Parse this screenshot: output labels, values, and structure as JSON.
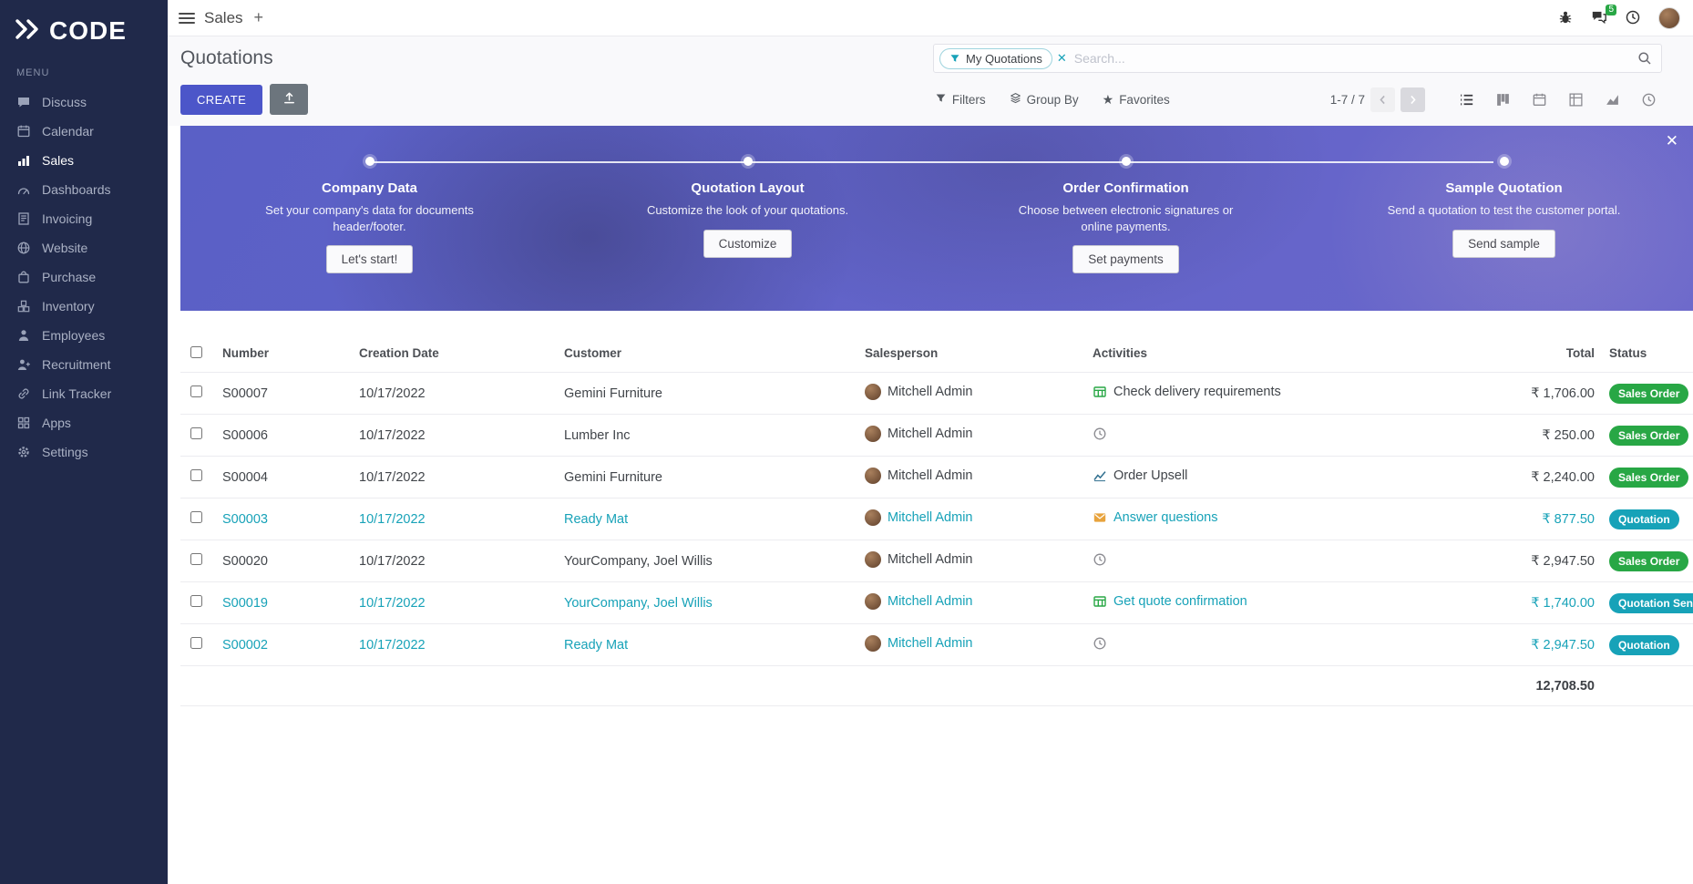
{
  "brand": {
    "name": "CODE"
  },
  "topbar": {
    "app_name": "Sales",
    "messages_badge": "5"
  },
  "sidebar": {
    "menu_label": "MENU",
    "items": [
      {
        "id": "discuss",
        "label": "Discuss",
        "active": false
      },
      {
        "id": "calendar",
        "label": "Calendar",
        "active": false
      },
      {
        "id": "sales",
        "label": "Sales",
        "active": true
      },
      {
        "id": "dashboards",
        "label": "Dashboards",
        "active": false
      },
      {
        "id": "invoicing",
        "label": "Invoicing",
        "active": false
      },
      {
        "id": "website",
        "label": "Website",
        "active": false
      },
      {
        "id": "purchase",
        "label": "Purchase",
        "active": false
      },
      {
        "id": "inventory",
        "label": "Inventory",
        "active": false
      },
      {
        "id": "employees",
        "label": "Employees",
        "active": false
      },
      {
        "id": "recruitment",
        "label": "Recruitment",
        "active": false
      },
      {
        "id": "link-tracker",
        "label": "Link Tracker",
        "active": false
      },
      {
        "id": "apps",
        "label": "Apps",
        "active": false
      },
      {
        "id": "settings",
        "label": "Settings",
        "active": false
      }
    ]
  },
  "control_panel": {
    "title": "Quotations",
    "search": {
      "filter_chip": "My Quotations",
      "placeholder": "Search..."
    },
    "create_label": "CREATE",
    "filters_label": "Filters",
    "group_by_label": "Group By",
    "favorites_label": "Favorites",
    "pager": {
      "text": "1-7 / 7"
    }
  },
  "banner": {
    "steps": [
      {
        "title": "Company Data",
        "desc": "Set your company's data for documents header/footer.",
        "button": "Let's start!"
      },
      {
        "title": "Quotation Layout",
        "desc": "Customize the look of your quotations.",
        "button": "Customize"
      },
      {
        "title": "Order Confirmation",
        "desc": "Choose between electronic signatures or online payments.",
        "button": "Set payments"
      },
      {
        "title": "Sample Quotation",
        "desc": "Send a quotation to test the customer portal.",
        "button": "Send sample"
      }
    ]
  },
  "table": {
    "columns": [
      "Number",
      "Creation Date",
      "Customer",
      "Salesperson",
      "Activities",
      "Total",
      "Status"
    ],
    "accent_color": "#17a2b8",
    "rows": [
      {
        "number": "S00007",
        "creation_date": "10/17/2022",
        "customer": "Gemini Furniture",
        "salesperson": "Mitchell Admin",
        "activity": {
          "icon": "grid",
          "icon_color": "#28a745",
          "label": "Check delivery requirements"
        },
        "total": "₹ 1,706.00",
        "status": "Sales Order",
        "status_variant": "success",
        "highlighted": false
      },
      {
        "number": "S00006",
        "creation_date": "10/17/2022",
        "customer": "Lumber Inc",
        "salesperson": "Mitchell Admin",
        "activity": {
          "icon": "clock",
          "icon_color": "#8a8a90",
          "label": ""
        },
        "total": "₹ 250.00",
        "status": "Sales Order",
        "status_variant": "success",
        "highlighted": false
      },
      {
        "number": "S00004",
        "creation_date": "10/17/2022",
        "customer": "Gemini Furniture",
        "salesperson": "Mitchell Admin",
        "activity": {
          "icon": "chart",
          "icon_color": "#31708f",
          "label": "Order Upsell"
        },
        "total": "₹ 2,240.00",
        "status": "Sales Order",
        "status_variant": "success",
        "highlighted": false
      },
      {
        "number": "S00003",
        "creation_date": "10/17/2022",
        "customer": "Ready Mat",
        "salesperson": "Mitchell Admin",
        "activity": {
          "icon": "envelope",
          "icon_color": "#e8a33d",
          "label": "Answer questions"
        },
        "total": "₹ 877.50",
        "status": "Quotation",
        "status_variant": "info",
        "highlighted": true
      },
      {
        "number": "S00020",
        "creation_date": "10/17/2022",
        "customer": "YourCompany, Joel Willis",
        "salesperson": "Mitchell Admin",
        "activity": {
          "icon": "clock",
          "icon_color": "#8a8a90",
          "label": ""
        },
        "total": "₹ 2,947.50",
        "status": "Sales Order",
        "status_variant": "success",
        "highlighted": false
      },
      {
        "number": "S00019",
        "creation_date": "10/17/2022",
        "customer": "YourCompany, Joel Willis",
        "salesperson": "Mitchell Admin",
        "activity": {
          "icon": "grid",
          "icon_color": "#28a745",
          "label": "Get quote confirmation"
        },
        "total": "₹ 1,740.00",
        "status": "Quotation Sent",
        "status_variant": "info",
        "highlighted": true
      },
      {
        "number": "S00002",
        "creation_date": "10/17/2022",
        "customer": "Ready Mat",
        "salesperson": "Mitchell Admin",
        "activity": {
          "icon": "clock",
          "icon_color": "#8a8a90",
          "label": ""
        },
        "total": "₹ 2,947.50",
        "status": "Quotation",
        "status_variant": "info",
        "highlighted": true
      }
    ],
    "sum_total": "12,708.50"
  }
}
